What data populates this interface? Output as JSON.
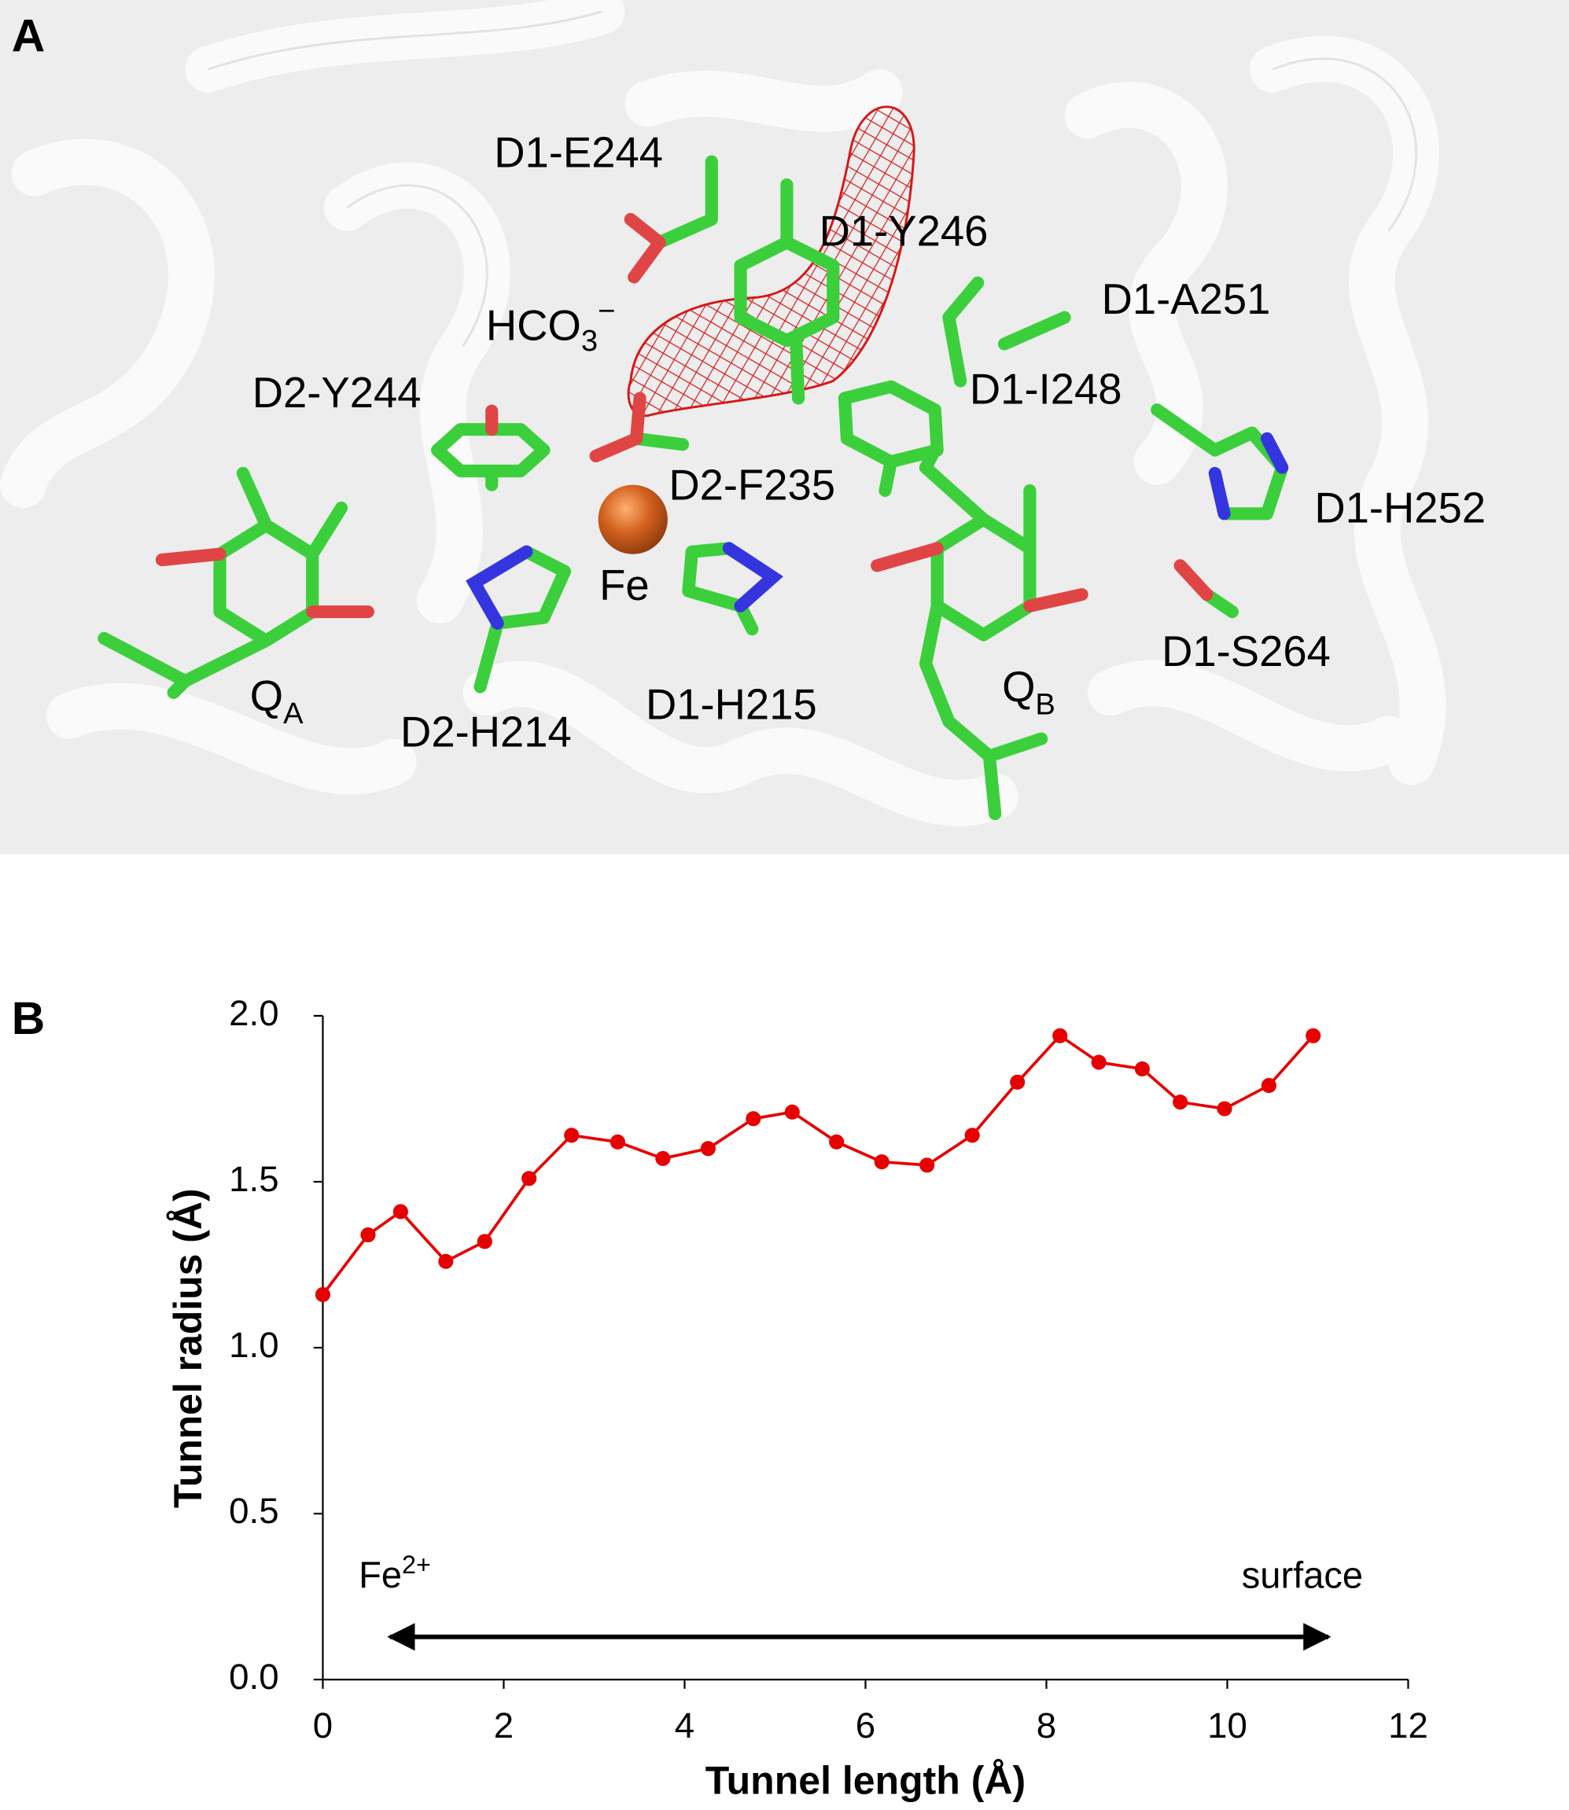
{
  "panel_a": {
    "label": "A",
    "labels": [
      {
        "text": "D1-E244"
      },
      {
        "text": "D1-Y246"
      },
      {
        "text": "HCO",
        "sub": "3",
        "sup": "−"
      },
      {
        "text": "D1-A251"
      },
      {
        "text": "D2-Y244"
      },
      {
        "text": "D1-I248"
      },
      {
        "text": "D2-F235"
      },
      {
        "text": "D1-H252"
      },
      {
        "text": "Fe"
      },
      {
        "text": "D1-S264"
      },
      {
        "text": "Q",
        "sub": "A"
      },
      {
        "text": "D2-H214"
      },
      {
        "text": "D1-H215"
      },
      {
        "text": "Q",
        "sub": "B"
      }
    ]
  },
  "chart_data": {
    "type": "line",
    "panel_label": "B",
    "xlabel": "Tunnel length (Å)",
    "ylabel": "Tunnel radius (Å)",
    "x": [
      0,
      0.5,
      0.86,
      1.36,
      1.79,
      2.28,
      2.75,
      3.26,
      3.76,
      4.26,
      4.76,
      5.19,
      5.68,
      6.18,
      6.68,
      7.18,
      7.68,
      8.15,
      8.58,
      9.06,
      9.48,
      9.97,
      10.46,
      10.95
    ],
    "series": [
      {
        "name": "Tunnel radius",
        "color": "#e60000",
        "values": [
          1.16,
          1.34,
          1.41,
          1.26,
          1.32,
          1.51,
          1.64,
          1.62,
          1.57,
          1.6,
          1.69,
          1.71,
          1.62,
          1.56,
          1.55,
          1.64,
          1.8,
          1.94,
          1.86,
          1.84,
          1.74,
          1.72,
          1.79,
          1.94
        ]
      }
    ],
    "xlim": [
      0,
      12
    ],
    "xticks": [
      0,
      2,
      4,
      6,
      8,
      10,
      12
    ],
    "ylim": [
      0,
      2
    ],
    "yticks": [
      {
        "value": 0,
        "label": "0.0"
      },
      0.5,
      {
        "value": 1,
        "label": "1.0"
      },
      1.5,
      {
        "value": 2,
        "label": "2.0"
      }
    ],
    "annotations": [
      {
        "text": "Fe",
        "sup": "2+"
      },
      {
        "text": "surface"
      }
    ]
  }
}
